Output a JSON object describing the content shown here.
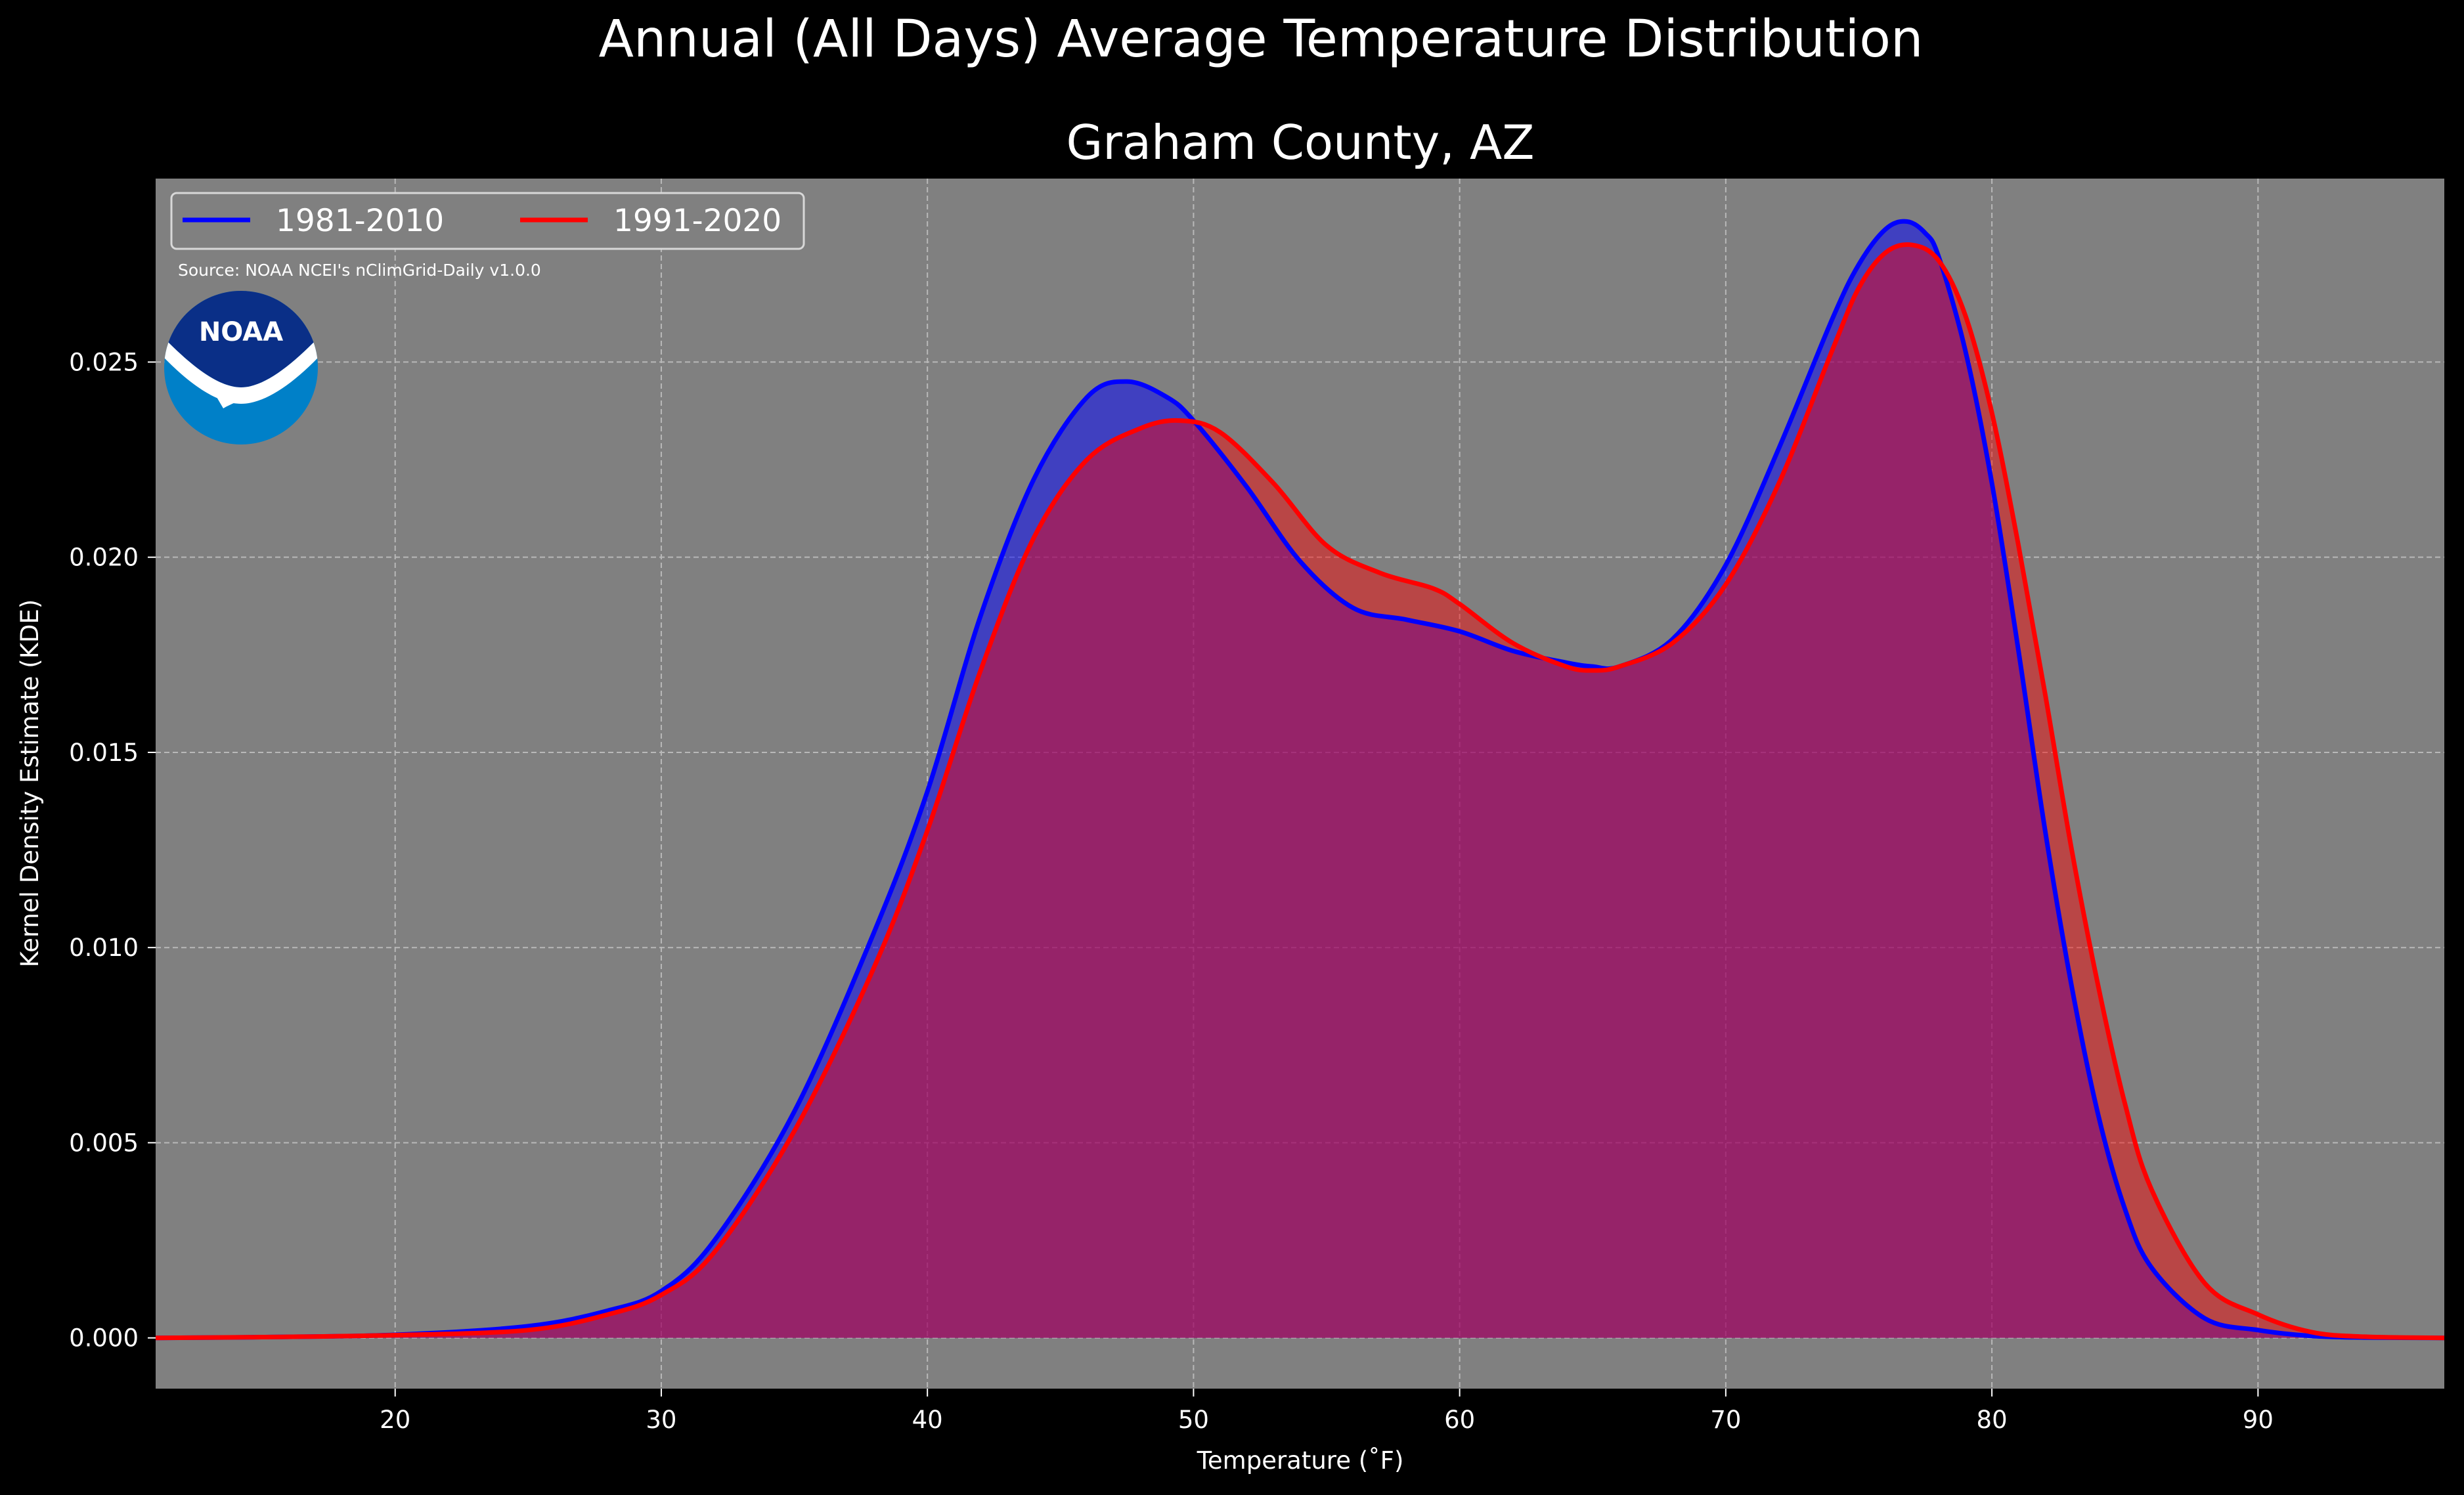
{
  "chart_data": {
    "type": "area",
    "title": "Annual (All Days) Average Temperature Distribution",
    "subtitle": "Graham County, AZ",
    "xlabel": "Temperature (˚F)",
    "ylabel": "Kernel Density Estimate (KDE)",
    "xlim": [
      11,
      97
    ],
    "ylim": [
      -0.0013,
      0.0297
    ],
    "xticks": [
      20,
      30,
      40,
      50,
      60,
      70,
      80,
      90
    ],
    "yticks": [
      0.0,
      0.005,
      0.01,
      0.015,
      0.02,
      0.025
    ],
    "ytick_labels": [
      "0.000",
      "0.005",
      "0.010",
      "0.015",
      "0.020",
      "0.025"
    ],
    "grid": true,
    "legend_position": "top-left",
    "source": "Source: NOAA NCEI's nClimGrid-Daily v1.0.0",
    "series": [
      {
        "name": "1981-2010",
        "color": "#0000ff",
        "x": [
          11,
          15,
          20,
          25,
          28,
          30,
          32,
          35,
          38,
          40,
          42,
          44,
          46,
          47.5,
          49,
          50,
          52,
          54,
          56,
          58,
          60,
          62,
          64,
          65,
          66,
          68,
          70,
          72,
          74,
          75,
          76,
          76.8,
          77.5,
          78,
          79,
          80,
          81,
          82,
          83,
          84,
          85,
          86,
          88,
          90,
          92,
          94,
          97
        ],
        "y": [
          0.0,
          2e-05,
          8e-05,
          0.0003,
          0.0007,
          0.0012,
          0.0025,
          0.0058,
          0.0104,
          0.014,
          0.0185,
          0.022,
          0.0241,
          0.0245,
          0.0241,
          0.0235,
          0.0218,
          0.0199,
          0.0187,
          0.0184,
          0.0181,
          0.0176,
          0.0173,
          0.0172,
          0.0172,
          0.0179,
          0.0198,
          0.0228,
          0.0261,
          0.0275,
          0.0284,
          0.0286,
          0.0283,
          0.0277,
          0.0253,
          0.0219,
          0.0176,
          0.013,
          0.009,
          0.0057,
          0.0033,
          0.0018,
          0.0005,
          0.0002,
          5e-05,
          1e-05,
          0.0
        ]
      },
      {
        "name": "1991-2020",
        "color": "#ff0000",
        "x": [
          11,
          15,
          20,
          25,
          28,
          30,
          32,
          35,
          38,
          40,
          42,
          44,
          46,
          48,
          49.5,
          51,
          53,
          55,
          57,
          59,
          60,
          62,
          64,
          65,
          66,
          68,
          70,
          72,
          74,
          75,
          76,
          77,
          78,
          79,
          80,
          81,
          82,
          83,
          84,
          85,
          86,
          88,
          90,
          92,
          94,
          97
        ],
        "y": [
          0.0,
          2e-05,
          7e-05,
          0.0002,
          0.0006,
          0.0011,
          0.0022,
          0.0053,
          0.0095,
          0.013,
          0.0171,
          0.0205,
          0.0225,
          0.0233,
          0.0235,
          0.0232,
          0.0219,
          0.0203,
          0.0196,
          0.0192,
          0.0188,
          0.0178,
          0.0172,
          0.0171,
          0.0172,
          0.0178,
          0.0193,
          0.0219,
          0.0253,
          0.0269,
          0.0278,
          0.028,
          0.0276,
          0.0262,
          0.0237,
          0.0203,
          0.0165,
          0.0125,
          0.009,
          0.006,
          0.0038,
          0.0014,
          0.0006,
          0.00015,
          3e-05,
          0.0
        ]
      }
    ]
  },
  "logo": {
    "text": "NOAA",
    "outer_color": "#0080c8",
    "inner_color": "#0a2f87",
    "wave_color": "#ffffff"
  },
  "colors": {
    "background": "#000000",
    "plot_background": "#808080",
    "fill_mix": "#9e1f5b"
  }
}
